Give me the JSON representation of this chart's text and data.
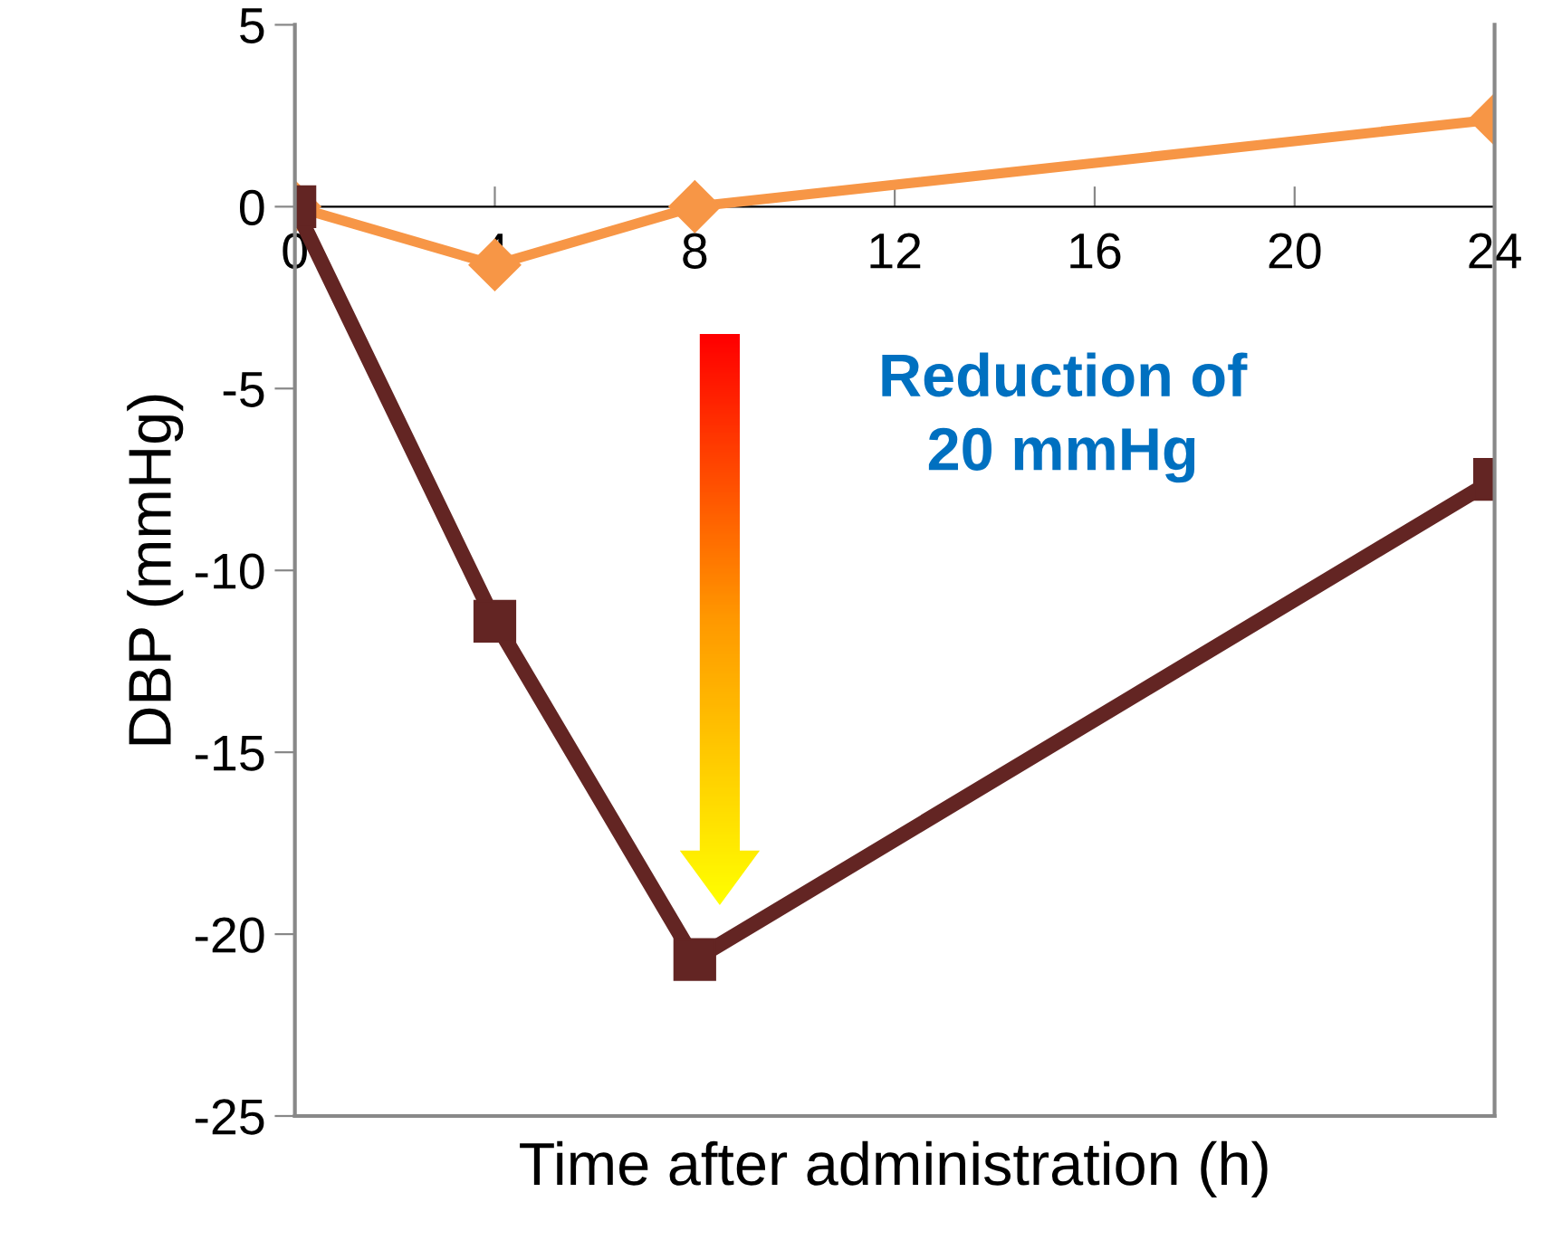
{
  "chart_data": {
    "type": "line",
    "xlabel": "Time after administration (h)",
    "ylabel": "DBP (mmHg)",
    "series": [
      {
        "color": "#f79646",
        "x": [
          0,
          4,
          8,
          24
        ],
        "values": [
          0,
          -1.6,
          0,
          2.4
        ],
        "marker": "diamond"
      },
      {
        "color": "#632523",
        "x": [
          0,
          4,
          8,
          24
        ],
        "values": [
          0,
          -11.4,
          -20.7,
          -7.5
        ],
        "marker": "square"
      }
    ],
    "xlim": [
      0,
      24
    ],
    "xticks": [
      0,
      4,
      8,
      12,
      16,
      20,
      24
    ],
    "ylim": [
      -25,
      5
    ],
    "yticks": [
      -25,
      -20,
      -15,
      -10,
      -5,
      0,
      5
    ],
    "grid": false,
    "legend": false,
    "line_style": "solid",
    "annotations": [
      "Reduction of\n20 mmHg"
    ]
  }
}
